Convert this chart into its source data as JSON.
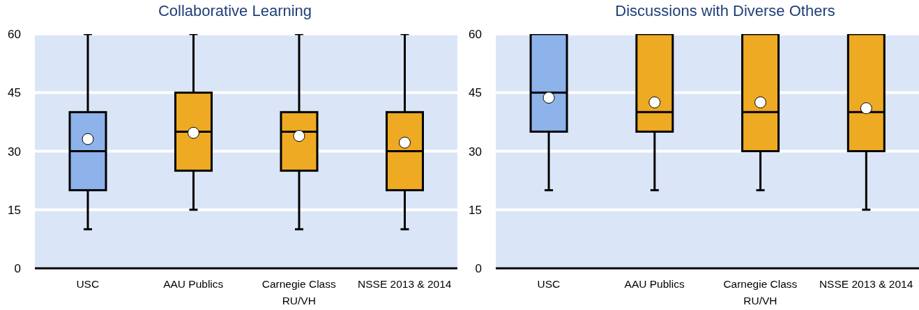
{
  "chart_data": [
    {
      "type": "box",
      "title": "Collaborative Learning",
      "categories": [
        "USC",
        "AAU Publics",
        "Carnegie Class\nRU/VH",
        "NSSE 2013 & 2014"
      ],
      "boxes": [
        {
          "low": 10,
          "q1": 20,
          "median": 30,
          "q3": 40,
          "high": 60,
          "mean": 33.1
        },
        {
          "low": 15,
          "q1": 25,
          "median": 35,
          "q3": 45,
          "high": 60,
          "mean": 34.7
        },
        {
          "low": 10,
          "q1": 25,
          "median": 35,
          "q3": 40,
          "high": 60,
          "mean": 33.9
        },
        {
          "low": 10,
          "q1": 20,
          "median": 30,
          "q3": 40,
          "high": 60,
          "mean": 32.2
        }
      ],
      "colors": [
        "#8db3ea",
        "#eeaa22",
        "#eeaa22",
        "#eeaa22"
      ],
      "ylim": [
        0,
        60
      ],
      "yticks": [
        0,
        15,
        30,
        45,
        60
      ],
      "grid": "y"
    },
    {
      "type": "box",
      "title": "Discussions with Diverse Others",
      "categories": [
        "USC",
        "AAU Publics",
        "Carnegie Class\nRU/VH",
        "NSSE 2013 & 2014"
      ],
      "boxes": [
        {
          "low": 20,
          "q1": 35,
          "median": 45,
          "q3": 60,
          "high": 60,
          "mean": 43.7
        },
        {
          "low": 20,
          "q1": 35,
          "median": 40,
          "q3": 60,
          "high": 60,
          "mean": 42.5
        },
        {
          "low": 20,
          "q1": 30,
          "median": 40,
          "q3": 60,
          "high": 60,
          "mean": 42.5
        },
        {
          "low": 15,
          "q1": 30,
          "median": 40,
          "q3": 60,
          "high": 60,
          "mean": 41
        }
      ],
      "colors": [
        "#8db3ea",
        "#eeaa22",
        "#eeaa22",
        "#eeaa22"
      ],
      "ylim": [
        0,
        60
      ],
      "yticks": [
        0,
        15,
        30,
        45,
        60
      ],
      "grid": "y"
    }
  ]
}
